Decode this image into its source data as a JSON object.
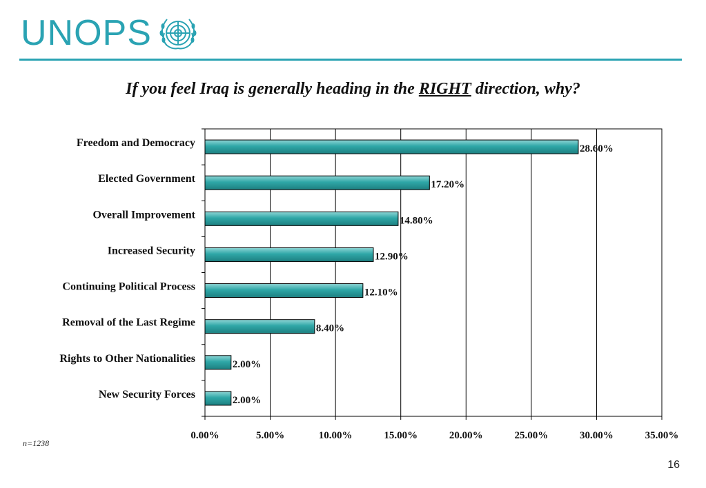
{
  "header": {
    "logo_text": "UNOPS",
    "logo_emblem_icon": "un-emblem-icon",
    "brand_color": "#2aa3b3"
  },
  "title": {
    "prefix": "If you feel Iraq is generally heading in the ",
    "emphasis": "RIGHT",
    "suffix": " direction, why?"
  },
  "chart_data": {
    "type": "bar",
    "orientation": "horizontal",
    "categories": [
      "Freedom and Democracy",
      "Elected Government",
      "Overall Improvement",
      "Increased Security",
      "Continuing Political Process",
      "Removal of the Last Regime",
      "Rights to Other Nationalities",
      "New Security Forces"
    ],
    "values": [
      28.6,
      17.2,
      14.8,
      12.9,
      12.1,
      8.4,
      2.0,
      2.0
    ],
    "data_labels": [
      "28.60%",
      "17.20%",
      "14.80%",
      "12.90%",
      "12.10%",
      "8.40%",
      "2.00%",
      "2.00%"
    ],
    "xlim": [
      0,
      35
    ],
    "x_ticks": [
      0,
      5,
      10,
      15,
      20,
      25,
      30,
      35
    ],
    "x_tick_labels": [
      "0.00%",
      "5.00%",
      "10.00%",
      "15.00%",
      "20.00%",
      "25.00%",
      "30.00%",
      "35.00%"
    ],
    "grid": "vertical",
    "bar_color": "#2fa7a7",
    "title": "If you feel Iraq is generally heading in the RIGHT direction, why?",
    "xlabel": "",
    "ylabel": ""
  },
  "footer": {
    "note": "n=1238",
    "page_number": "16"
  }
}
